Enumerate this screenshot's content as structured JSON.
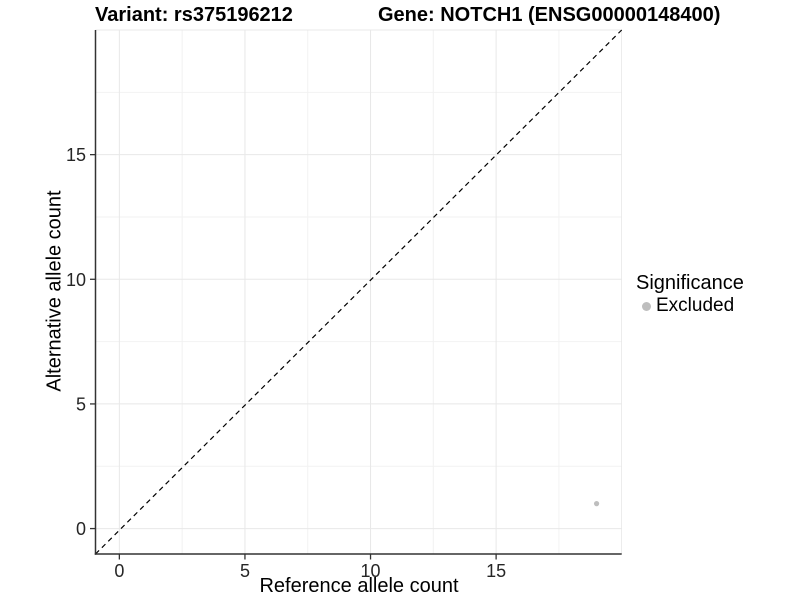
{
  "titles": {
    "variant": "Variant: rs375196212",
    "gene": "Gene: NOTCH1 (ENSG00000148400)"
  },
  "axes": {
    "x_label": "Reference allele count",
    "y_label": "Alternative allele count"
  },
  "legend": {
    "title": "Significance",
    "items": [
      {
        "label": "Excluded",
        "color": "#bebebe"
      }
    ]
  },
  "style": {
    "grid_major": "#e8e8e8",
    "grid_minor": "#f2f2f2",
    "axis_line": "#333333",
    "tick_color": "#333333",
    "tick_label_color": "#262626",
    "reference_line_color": "#000000",
    "background": "#ffffff"
  },
  "chart_data": {
    "type": "scatter",
    "title": "Variant: rs375196212  |  Gene: NOTCH1 (ENSG00000148400)",
    "xlabel": "Reference allele count",
    "ylabel": "Alternative allele count",
    "xlim": [
      -0.95,
      20
    ],
    "ylim": [
      -1.02,
      20
    ],
    "x_ticks": [
      0,
      5,
      10,
      15
    ],
    "y_ticks": [
      0,
      5,
      10,
      15
    ],
    "minor_gridlines": [
      2.5,
      7.5,
      12.5,
      17.5
    ],
    "major_gridlines": [
      0,
      5,
      10,
      15,
      20
    ],
    "grid": true,
    "legend_position": "right",
    "reference_line": {
      "type": "identity",
      "style": "dashed"
    },
    "series": [
      {
        "name": "Excluded",
        "color": "#bebebe",
        "points": [
          {
            "x": 19,
            "y": 1
          }
        ]
      }
    ]
  }
}
